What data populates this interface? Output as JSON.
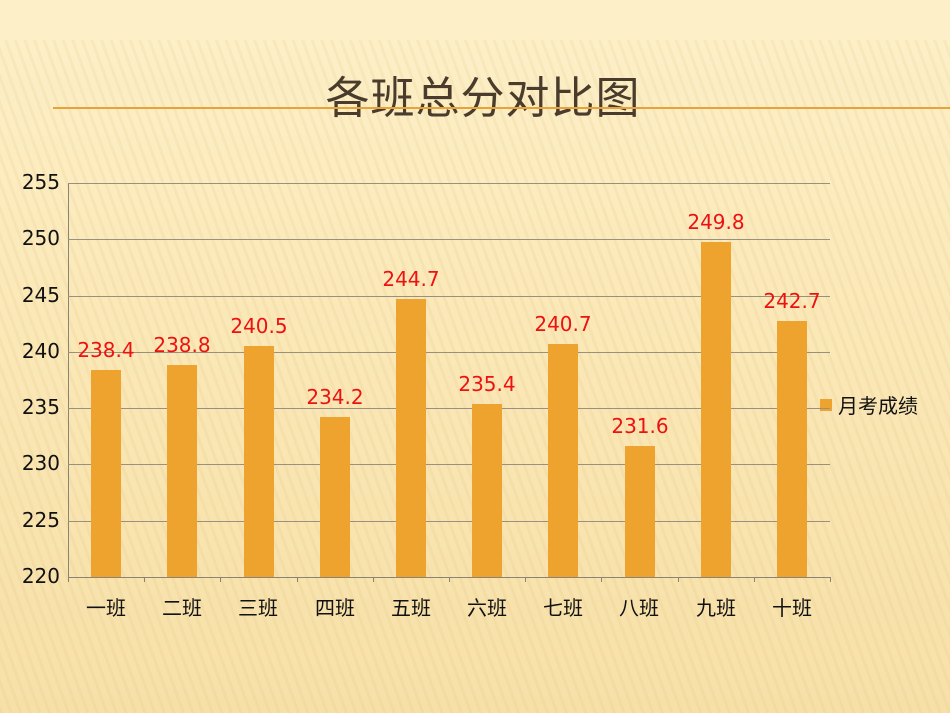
{
  "slide": {
    "title": "各班总分对比图"
  },
  "chart_data": {
    "type": "bar",
    "title": "各班总分对比图",
    "xlabel": "",
    "ylabel": "",
    "categories": [
      "一班",
      "二班",
      "三班",
      "四班",
      "五班",
      "六班",
      "七班",
      "八班",
      "九班",
      "十班"
    ],
    "series": [
      {
        "name": "月考成绩",
        "values": [
          238.4,
          238.8,
          240.5,
          234.2,
          244.7,
          235.4,
          240.7,
          231.6,
          249.8,
          242.7
        ],
        "color": "#eea32f"
      }
    ],
    "value_labels": [
      "238.4",
      "238.8",
      "240.5",
      "234.2",
      "244.7",
      "235.4",
      "240.7",
      "231.6",
      "249.8",
      "242.7"
    ],
    "value_label_color": "#ee1111",
    "ylim": [
      220,
      255
    ],
    "yticks": [
      "255",
      "250",
      "245",
      "240",
      "235",
      "230",
      "225",
      "220"
    ],
    "grid": true,
    "legend_position": "right"
  },
  "legend": {
    "label": "月考成绩"
  }
}
